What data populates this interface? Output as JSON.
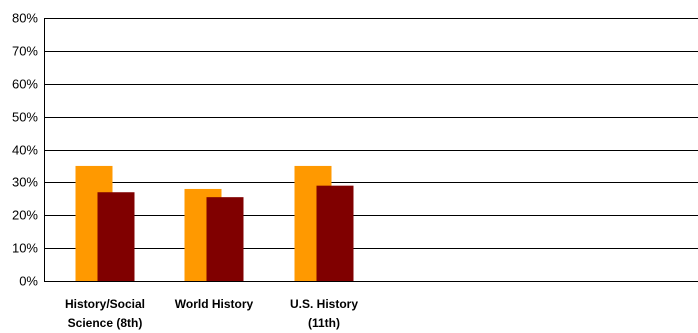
{
  "chart_data": {
    "type": "bar",
    "title": "",
    "xlabel": "",
    "ylabel": "",
    "ylim": [
      0,
      80
    ],
    "y_ticks": [
      "0%",
      "10%",
      "20%",
      "30%",
      "40%",
      "50%",
      "60%",
      "70%",
      "80%"
    ],
    "grid": true,
    "legend": "none",
    "categories": [
      [
        "History/Social",
        "Science (8th)"
      ],
      [
        "World History"
      ],
      [
        "U.S. History",
        "(11th)"
      ]
    ],
    "series": [
      {
        "color": "#FF9900",
        "values": [
          35,
          28,
          35
        ]
      },
      {
        "color": "#800000",
        "values": [
          27,
          25.5,
          29
        ]
      }
    ]
  }
}
